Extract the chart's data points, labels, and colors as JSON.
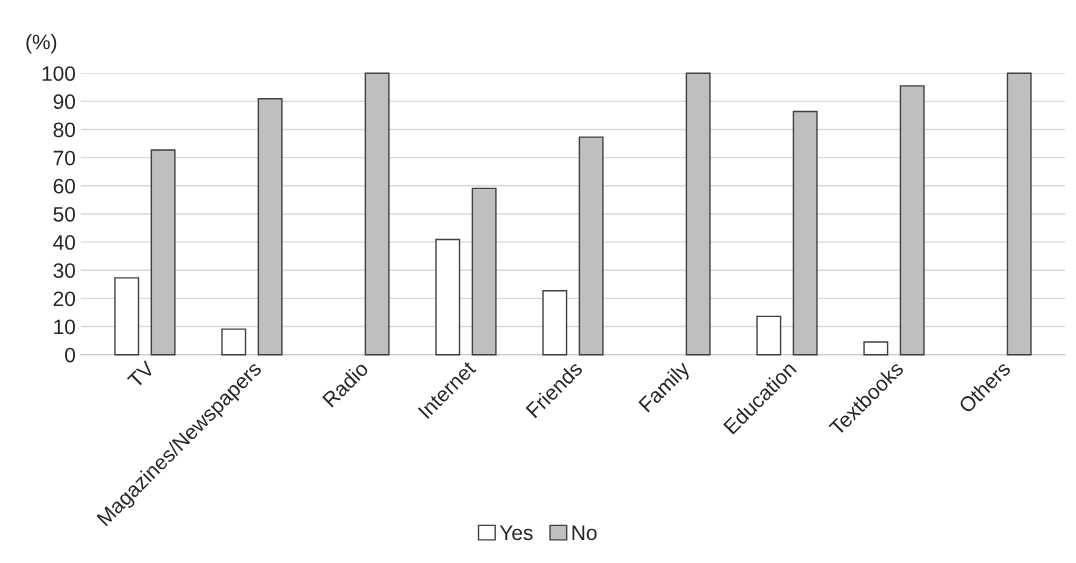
{
  "chart_data": {
    "type": "bar",
    "ylabel": "(%)",
    "categories": [
      "TV",
      "Magazines/Newspapers",
      "Radio",
      "Internet",
      "Friends",
      "Family",
      "Education",
      "Textbooks",
      "Others"
    ],
    "series": [
      {
        "name": "Yes",
        "color": "#ffffff",
        "values": [
          27.3,
          9.1,
          0,
          40.9,
          22.7,
          0,
          13.6,
          4.5,
          0
        ]
      },
      {
        "name": "No",
        "color": "#bfbfbf",
        "values": [
          72.7,
          90.9,
          100,
          59.1,
          77.3,
          100,
          86.4,
          95.5,
          100
        ]
      }
    ],
    "ylim": [
      0,
      100
    ],
    "yticks": [
      0,
      10,
      20,
      30,
      40,
      50,
      60,
      70,
      80,
      90,
      100
    ],
    "grid": "y",
    "legend": "bottom"
  }
}
